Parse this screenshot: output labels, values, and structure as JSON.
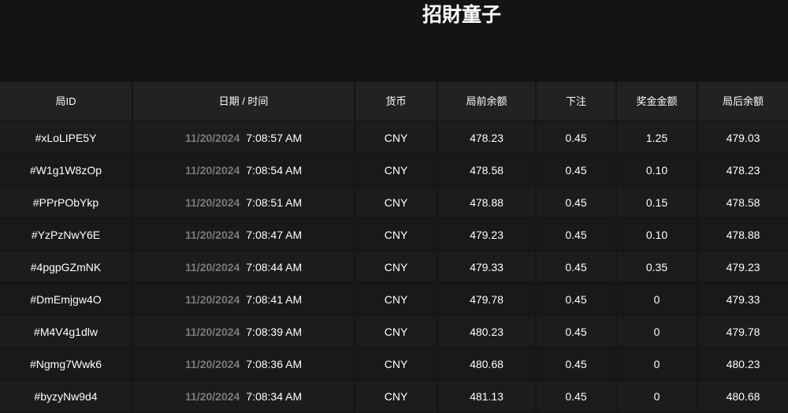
{
  "title": "招財童子",
  "columns": [
    "局ID",
    "日期 / 时间",
    "货币",
    "局前余额",
    "下注",
    "奖金金额",
    "局后余额"
  ],
  "rows": [
    {
      "id": "#xLoLIPE5Y",
      "date": "11/20/2024",
      "time": "7:08:57 AM",
      "currency": "CNY",
      "before": "478.23",
      "bet": "0.45",
      "win": "1.25",
      "after": "479.03"
    },
    {
      "id": "#W1g1W8zOp",
      "date": "11/20/2024",
      "time": "7:08:54 AM",
      "currency": "CNY",
      "before": "478.58",
      "bet": "0.45",
      "win": "0.10",
      "after": "478.23"
    },
    {
      "id": "#PPrPObYkp",
      "date": "11/20/2024",
      "time": "7:08:51 AM",
      "currency": "CNY",
      "before": "478.88",
      "bet": "0.45",
      "win": "0.15",
      "after": "478.58"
    },
    {
      "id": "#YzPzNwY6E",
      "date": "11/20/2024",
      "time": "7:08:47 AM",
      "currency": "CNY",
      "before": "479.23",
      "bet": "0.45",
      "win": "0.10",
      "after": "478.88"
    },
    {
      "id": "#4pgpGZmNK",
      "date": "11/20/2024",
      "time": "7:08:44 AM",
      "currency": "CNY",
      "before": "479.33",
      "bet": "0.45",
      "win": "0.35",
      "after": "479.23"
    },
    {
      "id": "#DmEmjgw4O",
      "date": "11/20/2024",
      "time": "7:08:41 AM",
      "currency": "CNY",
      "before": "479.78",
      "bet": "0.45",
      "win": "0",
      "after": "479.33"
    },
    {
      "id": "#M4V4g1dlw",
      "date": "11/20/2024",
      "time": "7:08:39 AM",
      "currency": "CNY",
      "before": "480.23",
      "bet": "0.45",
      "win": "0",
      "after": "479.78"
    },
    {
      "id": "#Ngmg7Wwk6",
      "date": "11/20/2024",
      "time": "7:08:36 AM",
      "currency": "CNY",
      "before": "480.68",
      "bet": "0.45",
      "win": "0",
      "after": "480.23"
    },
    {
      "id": "#byzyNw9d4",
      "date": "11/20/2024",
      "time": "7:08:34 AM",
      "currency": "CNY",
      "before": "481.13",
      "bet": "0.45",
      "win": "0",
      "after": "480.68"
    }
  ]
}
